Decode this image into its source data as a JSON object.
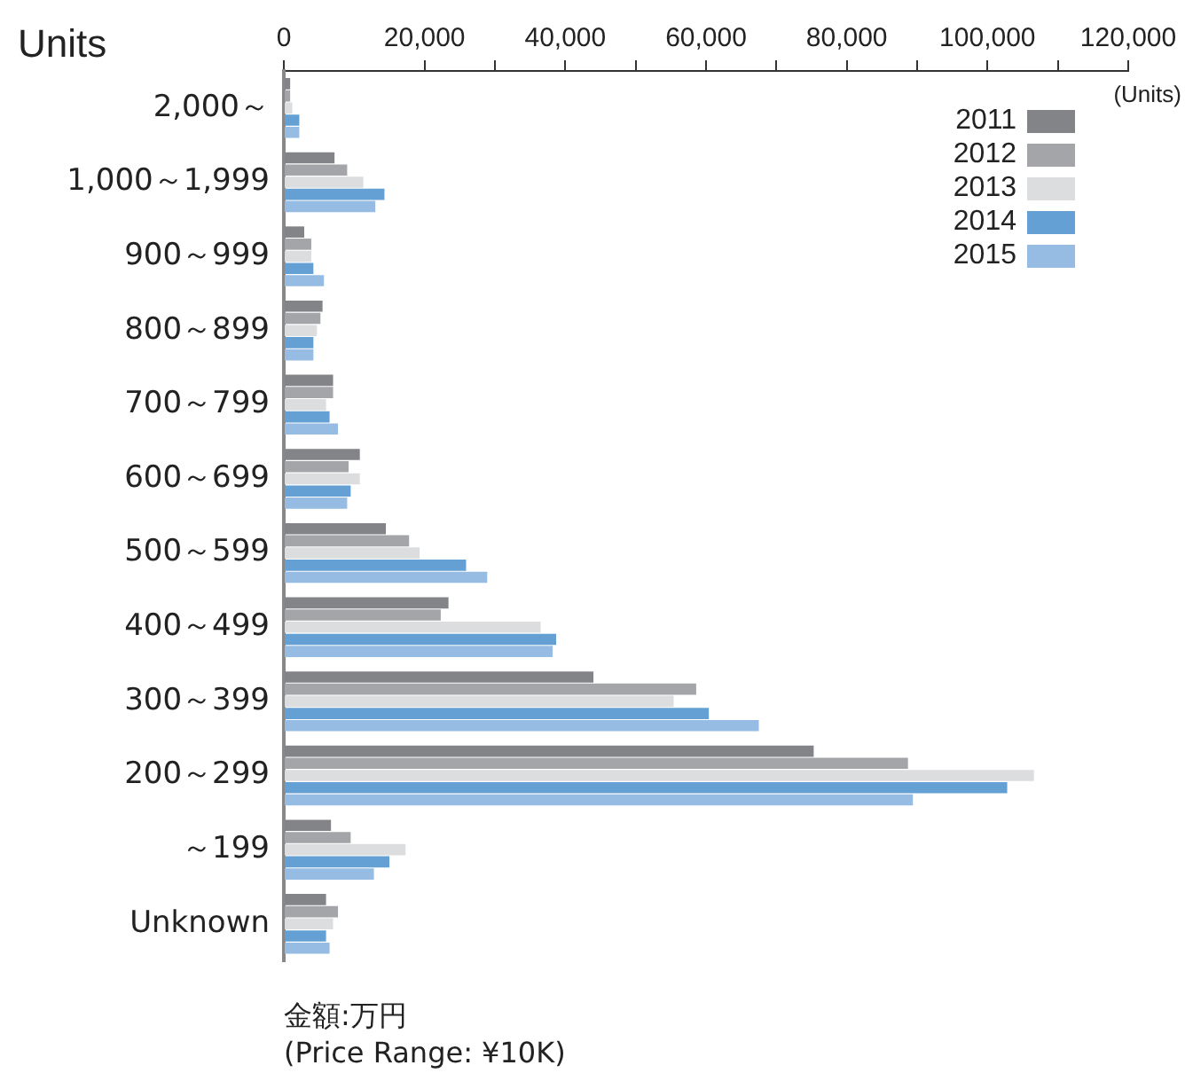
{
  "chart_data": {
    "type": "bar",
    "orientation": "horizontal",
    "title": "Units",
    "xlabel": "(Units)",
    "annotations": [
      "金額:万円",
      "(Price Range: ¥10K)"
    ],
    "categories": [
      "2,000～",
      "1,000～1,999",
      "900～999",
      "800～899",
      "700～799",
      "600～699",
      "500～599",
      "400～499",
      "300～399",
      "200～299",
      "～199",
      "Unknown"
    ],
    "series": [
      {
        "name": "2011",
        "color": "#838488",
        "values": [
          900,
          7200,
          2900,
          5500,
          7000,
          10800,
          14500,
          23400,
          44000,
          75300,
          6700,
          6000
        ]
      },
      {
        "name": "2012",
        "color": "#a4a5a8",
        "values": [
          900,
          9000,
          3900,
          5200,
          7000,
          9200,
          17800,
          22300,
          58600,
          88700,
          9500,
          7700
        ]
      },
      {
        "name": "2013",
        "color": "#dcdddf",
        "values": [
          1200,
          11300,
          3900,
          4700,
          6000,
          10800,
          19300,
          36500,
          55400,
          106600,
          17300,
          7000
        ]
      },
      {
        "name": "2014",
        "color": "#64a0d4",
        "values": [
          2200,
          14300,
          4200,
          4200,
          6500,
          9500,
          25900,
          38700,
          60400,
          102800,
          15000,
          6000
        ]
      },
      {
        "name": "2015",
        "color": "#96bce3",
        "values": [
          2200,
          13000,
          5700,
          4200,
          7700,
          9000,
          28900,
          38200,
          67500,
          89400,
          12800,
          6500
        ]
      }
    ],
    "xlim": [
      0,
      120000
    ],
    "xticks": [
      0,
      {
        "value": 20000,
        "label": "20,000"
      },
      {
        "value": 30000,
        "label": null
      },
      {
        "value": 40000,
        "label": "40,000"
      },
      {
        "value": 50000,
        "label": null
      },
      {
        "value": 60000,
        "label": "60,000"
      },
      {
        "value": 70000,
        "label": null
      },
      {
        "value": 80000,
        "label": "80,000"
      },
      {
        "value": 90000,
        "label": null
      },
      {
        "value": 100000,
        "label": "100,000"
      },
      {
        "value": 110000,
        "label": null
      },
      {
        "value": 120000,
        "label": "120,000"
      }
    ],
    "legend": "top right",
    "grid": false
  }
}
